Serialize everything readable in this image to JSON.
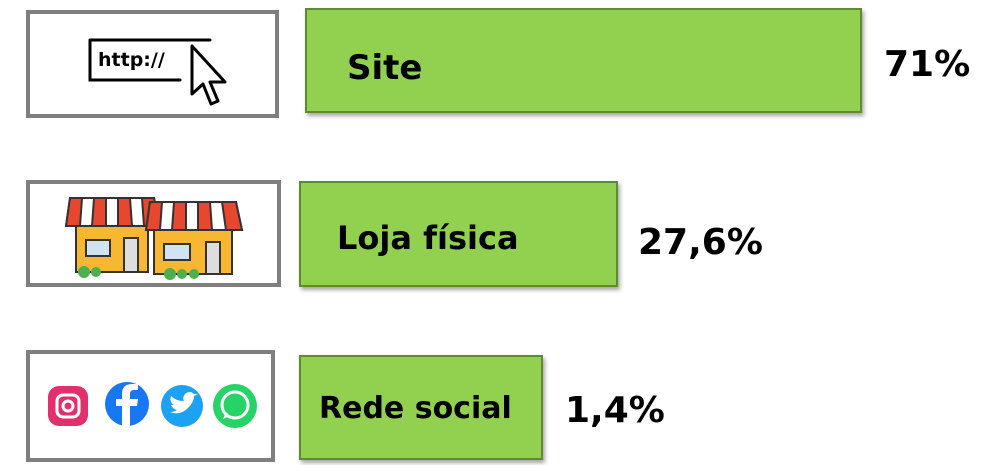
{
  "items": [
    {
      "label": "Site",
      "value": "71%",
      "icon_text": "http://"
    },
    {
      "label": "Loja física",
      "value": "27,6%"
    },
    {
      "label": "Rede social",
      "value": "1,4%"
    }
  ]
}
